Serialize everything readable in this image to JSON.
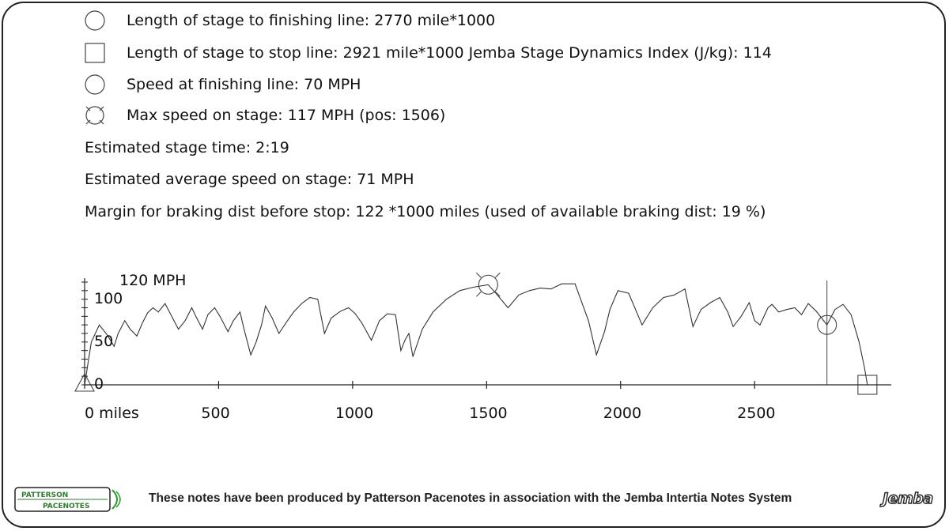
{
  "info": {
    "finish_length": "Length of stage to finishing line: 2770 mile*1000",
    "stop_length": "Length of stage to stop line: 2921 mile*1000 Jemba Stage Dynamics Index (J/kg): 114",
    "finish_speed": "Speed at finishing line: 70 MPH",
    "max_speed": "Max speed on stage: 117 MPH (pos: 1506)",
    "stage_time": "Estimated stage time: 2:19",
    "avg_speed": "Estimated average speed on stage: 71 MPH",
    "braking_margin": "Margin for braking dist before stop: 122 *1000 miles (used of available braking dist: 19 %)"
  },
  "footer": {
    "text": "These notes have been produced by Patterson Pacenotes in association with the Jemba Intertia Notes System",
    "logo_left": "PATTERSON PACENOTES",
    "logo_right": "Jemba"
  },
  "chart_data": {
    "type": "line",
    "title": "",
    "xlabel": "",
    "ylabel": "120 MPH",
    "xlim": [
      0,
      3010
    ],
    "ylim": [
      0,
      120
    ],
    "x_ticks": [
      0,
      500,
      1000,
      1500,
      2000,
      2500
    ],
    "x_tick_labels": [
      "0 miles",
      "500",
      "1000",
      "1500",
      "2000",
      "2500"
    ],
    "y_tick_labels": [
      "0",
      "50",
      "100"
    ],
    "grid": false,
    "markers": {
      "max_speed": {
        "x": 1506,
        "y": 117
      },
      "finish": {
        "x": 2770,
        "y": 70
      },
      "stop": {
        "x": 2921,
        "y": 0
      },
      "start": {
        "x": 0,
        "y": 0
      }
    },
    "series": [
      {
        "name": "",
        "x": [
          0,
          25,
          55,
          85,
          110,
          125,
          150,
          170,
          195,
          215,
          235,
          255,
          275,
          300,
          325,
          350,
          375,
          400,
          415,
          440,
          460,
          485,
          505,
          535,
          555,
          580,
          595,
          620,
          640,
          660,
          675,
          700,
          725,
          755,
          780,
          810,
          840,
          870,
          895,
          920,
          955,
          985,
          1010,
          1035,
          1070,
          1100,
          1130,
          1160,
          1180,
          1195,
          1210,
          1225,
          1260,
          1300,
          1350,
          1400,
          1450,
          1506,
          1540,
          1580,
          1620,
          1660,
          1700,
          1740,
          1780,
          1830,
          1880,
          1910,
          1940,
          1960,
          1990,
          2030,
          2080,
          2120,
          2160,
          2200,
          2240,
          2270,
          2300,
          2335,
          2370,
          2400,
          2420,
          2450,
          2480,
          2500,
          2520,
          2550,
          2565,
          2590,
          2620,
          2650,
          2675,
          2700,
          2730,
          2770,
          2800,
          2830,
          2860,
          2890,
          2910,
          2921
        ],
        "y": [
          0,
          50,
          70,
          58,
          45,
          60,
          75,
          65,
          57,
          72,
          84,
          90,
          85,
          95,
          80,
          65,
          75,
          90,
          80,
          65,
          82,
          90,
          80,
          62,
          75,
          85,
          65,
          35,
          50,
          70,
          92,
          78,
          60,
          74,
          85,
          95,
          102,
          100,
          60,
          78,
          86,
          90,
          83,
          72,
          52,
          75,
          83,
          82,
          40,
          52,
          60,
          33,
          65,
          85,
          100,
          110,
          114,
          117,
          105,
          90,
          105,
          110,
          113,
          112,
          118,
          118,
          75,
          35,
          62,
          88,
          110,
          107,
          70,
          90,
          102,
          105,
          112,
          68,
          88,
          96,
          102,
          85,
          68,
          80,
          96,
          75,
          70,
          90,
          94,
          85,
          88,
          90,
          82,
          95,
          86,
          70,
          88,
          94,
          82,
          50,
          20,
          0
        ]
      }
    ]
  }
}
